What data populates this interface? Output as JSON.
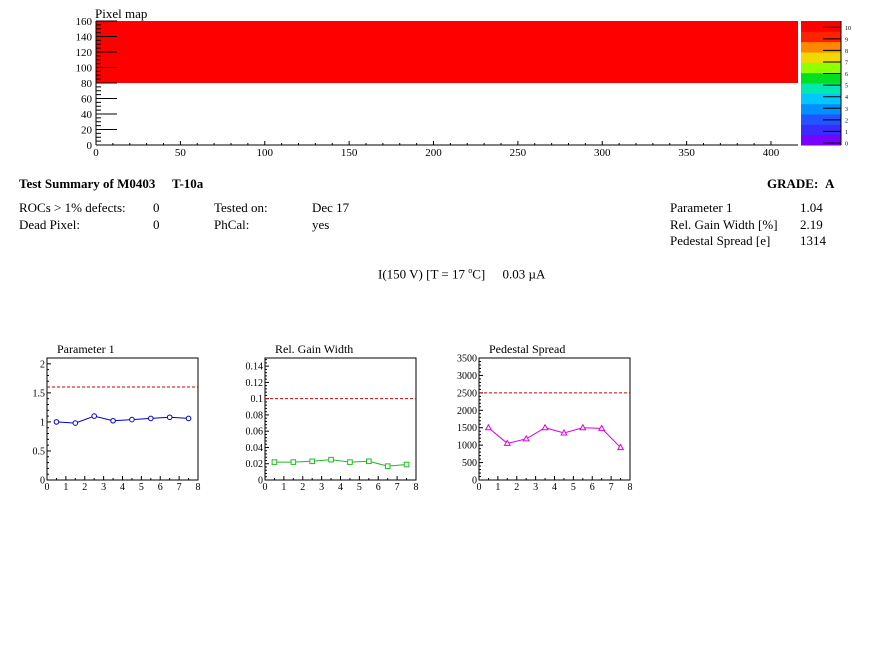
{
  "pixel_map": {
    "title": "Pixel map",
    "x_ticks": [
      "0",
      "50",
      "100",
      "150",
      "200",
      "250",
      "300",
      "350",
      "400"
    ],
    "y_ticks": [
      "0",
      "20",
      "40",
      "60",
      "80",
      "100",
      "120",
      "140",
      "160"
    ],
    "palette_labels": [
      "0",
      "1",
      "2",
      "3",
      "4",
      "5",
      "6",
      "7",
      "8",
      "9",
      "10"
    ],
    "palette_colors": [
      "#7a00ff",
      "#3a2cff",
      "#2255ff",
      "#0090ff",
      "#00c8ff",
      "#00e8b0",
      "#00e020",
      "#90ff00",
      "#f0d800",
      "#ff8800",
      "#ff2200",
      "#ff0000"
    ],
    "fill_color": "#ff0000"
  },
  "summary": {
    "title": "Test Summary of M0403",
    "test_id": "T-10a",
    "grade_label": "GRADE:",
    "grade_value": "A",
    "rocs_defects_label": "ROCs > 1% defects:",
    "rocs_defects_value": "0",
    "dead_pixel_label": "Dead Pixel:",
    "dead_pixel_value": "0",
    "tested_on_label": "Tested on:",
    "tested_on_value": "Dec 17",
    "phcal_label": "PhCal:",
    "phcal_value": "yes",
    "param1_label": "Parameter 1",
    "param1_value": "1.04",
    "gain_label": "Rel. Gain Width [%]",
    "gain_value": "2.19",
    "pedestal_label": "Pedestal Spread [e]",
    "pedestal_value": "1314",
    "current_prefix": "I(150 V) [T = 17 ",
    "current_degree": "o",
    "current_suffix": "C]",
    "current_value": "0.03 µA"
  },
  "chart_data": [
    {
      "type": "heatmap",
      "title": "Pixel map",
      "xlim": [
        0,
        416
      ],
      "ylim": [
        0,
        160
      ],
      "filled_region": {
        "x": [
          0,
          416
        ],
        "y": [
          80,
          160
        ],
        "value": 10
      },
      "zlim": [
        0,
        10
      ]
    },
    {
      "type": "line",
      "title": "Parameter 1",
      "x": [
        0.5,
        1.5,
        2.5,
        3.5,
        4.5,
        5.5,
        6.5,
        7.5
      ],
      "values": [
        1.0,
        0.98,
        1.1,
        1.02,
        1.04,
        1.06,
        1.08,
        1.06
      ],
      "xlim": [
        0,
        8
      ],
      "ylim": [
        0,
        2.1
      ],
      "x_ticks": [
        "0",
        "1",
        "2",
        "3",
        "4",
        "5",
        "6",
        "7",
        "8"
      ],
      "y_ticks": [
        "0",
        "0.5",
        "1",
        "1.5",
        "2"
      ],
      "y_tick_values": [
        0,
        0.5,
        1,
        1.5,
        2
      ],
      "threshold": 1.6,
      "color": "#0000cc",
      "marker": "circle"
    },
    {
      "type": "line",
      "title": "Rel. Gain Width",
      "x": [
        0.5,
        1.5,
        2.5,
        3.5,
        4.5,
        5.5,
        6.5,
        7.5
      ],
      "values": [
        0.022,
        0.022,
        0.023,
        0.025,
        0.022,
        0.023,
        0.017,
        0.019
      ],
      "xlim": [
        0,
        8
      ],
      "ylim": [
        0,
        0.15
      ],
      "x_ticks": [
        "0",
        "1",
        "2",
        "3",
        "4",
        "5",
        "6",
        "7",
        "8"
      ],
      "y_ticks": [
        "0",
        "0.02",
        "0.04",
        "0.06",
        "0.08",
        "0.1",
        "0.12",
        "0.14"
      ],
      "y_tick_values": [
        0,
        0.02,
        0.04,
        0.06,
        0.08,
        0.1,
        0.12,
        0.14
      ],
      "threshold": 0.1,
      "color": "#22bb22",
      "marker": "square"
    },
    {
      "type": "line",
      "title": "Pedestal Spread",
      "x": [
        0.5,
        1.5,
        2.5,
        3.5,
        4.5,
        5.5,
        6.5,
        7.5
      ],
      "values": [
        1500,
        1050,
        1180,
        1500,
        1350,
        1500,
        1480,
        930
      ],
      "xlim": [
        0,
        8
      ],
      "ylim": [
        0,
        3500
      ],
      "x_ticks": [
        "0",
        "1",
        "2",
        "3",
        "4",
        "5",
        "6",
        "7",
        "8"
      ],
      "y_ticks": [
        "0",
        "500",
        "1000",
        "1500",
        "2000",
        "2500",
        "3000",
        "3500"
      ],
      "y_tick_values": [
        0,
        500,
        1000,
        1500,
        2000,
        2500,
        3000,
        3500
      ],
      "threshold": 2500,
      "color": "#dd00dd",
      "marker": "triangle"
    }
  ]
}
